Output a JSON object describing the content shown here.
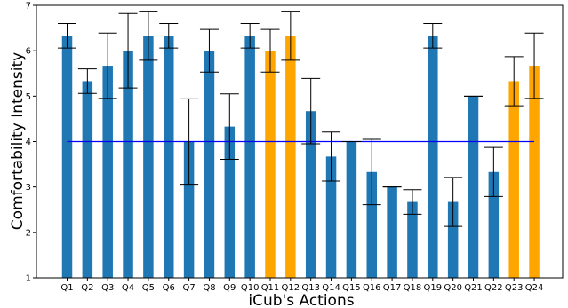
{
  "chart_data": {
    "type": "bar",
    "title": "",
    "xlabel": "iCub's Actions",
    "ylabel": "Comfortability Intensity",
    "ylim": [
      1,
      7
    ],
    "yticks": [
      1,
      2,
      3,
      4,
      5,
      6,
      7
    ],
    "grid": false,
    "categories": [
      "Q1",
      "Q2",
      "Q3",
      "Q4",
      "Q5",
      "Q6",
      "Q7",
      "Q8",
      "Q9",
      "Q10",
      "Q11",
      "Q12",
      "Q13",
      "Q14",
      "Q15",
      "Q16",
      "Q17",
      "Q18",
      "Q19",
      "Q20",
      "Q21",
      "Q22",
      "Q23",
      "Q24"
    ],
    "values": [
      6.33,
      5.33,
      5.67,
      6.0,
      6.33,
      6.33,
      4.0,
      6.0,
      4.33,
      6.33,
      6.0,
      6.33,
      4.67,
      3.67,
      4.0,
      3.33,
      3.0,
      2.67,
      6.33,
      2.67,
      5.0,
      3.33,
      5.33,
      5.67
    ],
    "errors": [
      0.27,
      0.27,
      0.72,
      0.82,
      0.54,
      0.27,
      0.94,
      0.47,
      0.72,
      0.27,
      0.47,
      0.54,
      0.72,
      0.54,
      0.0,
      0.72,
      0.0,
      0.27,
      0.27,
      0.54,
      0.0,
      0.54,
      0.54,
      0.72
    ],
    "highlighted": [
      "Q11",
      "Q12",
      "Q23",
      "Q24"
    ],
    "reference_line": 4,
    "colors": {
      "bar": "#1f77b4",
      "highlight": "#ffa500",
      "reference_line": "#0000ff",
      "error_bar": "#000000"
    }
  }
}
